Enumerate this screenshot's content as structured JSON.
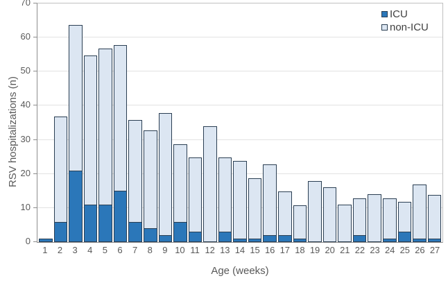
{
  "chart_data": {
    "type": "bar",
    "stacked": true,
    "title": "",
    "xlabel": "Age (weeks)",
    "ylabel": "RSV hospitalizations (n)",
    "categories": [
      "1",
      "2",
      "3",
      "4",
      "5",
      "6",
      "7",
      "8",
      "9",
      "10",
      "11",
      "12",
      "13",
      "14",
      "15",
      "16",
      "17",
      "18",
      "19",
      "20",
      "21",
      "22",
      "23",
      "24",
      "25",
      "26",
      "27"
    ],
    "series": [
      {
        "name": "ICU",
        "color": "#2b77b9",
        "values": [
          1,
          6,
          21,
          11,
          11,
          15,
          6,
          4,
          2,
          6,
          3,
          0,
          3,
          1,
          1,
          2,
          2,
          1,
          0,
          0,
          0,
          2,
          0,
          1,
          3,
          1,
          1
        ]
      },
      {
        "name": "non-ICU",
        "color": "#dce6f2",
        "values": [
          0,
          31,
          43,
          44,
          46,
          43,
          30,
          29,
          36,
          23,
          22,
          34,
          22,
          23,
          18,
          21,
          13,
          10,
          18,
          16,
          11,
          11,
          14,
          12,
          9,
          16,
          13
        ]
      }
    ],
    "totals": [
      1,
      37,
      64,
      55,
      57,
      58,
      36,
      33,
      38,
      29,
      25,
      34,
      25,
      24,
      19,
      23,
      15,
      11,
      18,
      16,
      11,
      13,
      14,
      13,
      12,
      17,
      14
    ],
    "ylim": [
      0,
      70
    ],
    "yticks": [
      0,
      10,
      20,
      30,
      40,
      50,
      60,
      70
    ],
    "grid": true,
    "legend_position": "top-right",
    "bar_border_color": "#2a3e52",
    "axis_color": "#8c8c8c",
    "gridline_color": "#e2e2e2",
    "tick_label_color": "#595959"
  }
}
